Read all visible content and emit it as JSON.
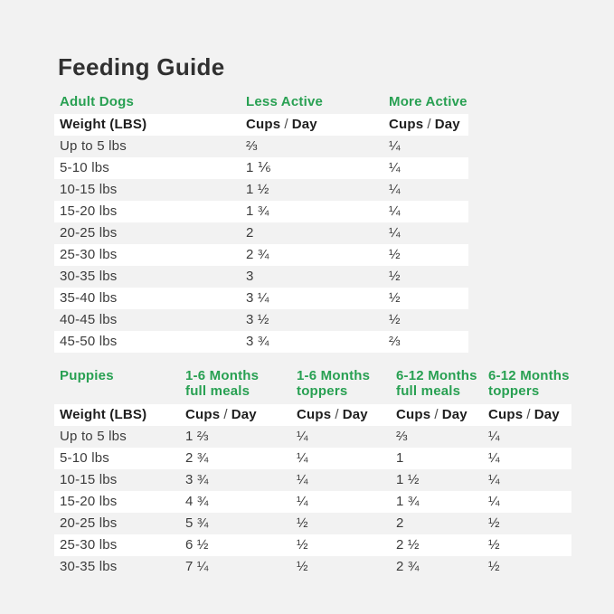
{
  "page": {
    "title": "Feeding Guide",
    "background_color": "#f2f2f2",
    "accent_green": "#28a052",
    "stripe_color": "#ffffff",
    "text_color": "#3c3c3c"
  },
  "labels": {
    "weight": "Weight (LBS)",
    "cups": "Cups",
    "sep": "/",
    "day": "Day"
  },
  "adult": {
    "section_label": "Adult Dogs",
    "columns": [
      "Less Active",
      "More Active"
    ],
    "rows": [
      {
        "weight": "Up to 5 lbs",
        "less": "⅔",
        "more": "¼"
      },
      {
        "weight": "5-10 lbs",
        "less": "1 ⅙",
        "more": "¼"
      },
      {
        "weight": "10-15 lbs",
        "less": "1 ½",
        "more": "¼"
      },
      {
        "weight": "15-20 lbs",
        "less": "1 ¾",
        "more": "¼"
      },
      {
        "weight": "20-25 lbs",
        "less": "2",
        "more": "¼"
      },
      {
        "weight": "25-30 lbs",
        "less": "2 ¾",
        "more": "½"
      },
      {
        "weight": "30-35 lbs",
        "less": "3",
        "more": "½"
      },
      {
        "weight": "35-40 lbs",
        "less": "3 ¼",
        "more": "½"
      },
      {
        "weight": "40-45 lbs",
        "less": "3 ½",
        "more": "½"
      },
      {
        "weight": "45-50 lbs",
        "less": "3 ¾",
        "more": "⅔"
      }
    ]
  },
  "puppies": {
    "section_label": "Puppies",
    "columns": [
      {
        "line1": "1-6 Months",
        "line2": "full meals"
      },
      {
        "line1": "1-6 Months",
        "line2": "toppers"
      },
      {
        "line1": "6-12 Months",
        "line2": "full meals"
      },
      {
        "line1": "6-12 Months",
        "line2": "toppers"
      }
    ],
    "rows": [
      {
        "weight": "Up to 5 lbs",
        "full16": "1 ⅔",
        "top16": "¼",
        "full612": "⅔",
        "top612": "¼"
      },
      {
        "weight": "5-10 lbs",
        "full16": "2 ¾",
        "top16": "¼",
        "full612": "1",
        "top612": "¼"
      },
      {
        "weight": "10-15 lbs",
        "full16": "3 ¾",
        "top16": "¼",
        "full612": "1 ½",
        "top612": "¼"
      },
      {
        "weight": "15-20 lbs",
        "full16": "4 ¾",
        "top16": "¼",
        "full612": "1 ¾",
        "top612": "¼"
      },
      {
        "weight": "20-25 lbs",
        "full16": "5 ¾",
        "top16": "½",
        "full612": "2",
        "top612": "½"
      },
      {
        "weight": "25-30 lbs",
        "full16": "6 ½",
        "top16": "½",
        "full612": "2 ½",
        "top612": "½"
      },
      {
        "weight": "30-35 lbs",
        "full16": "7 ¼",
        "top16": "½",
        "full612": "2 ¾",
        "top612": "½"
      }
    ]
  }
}
